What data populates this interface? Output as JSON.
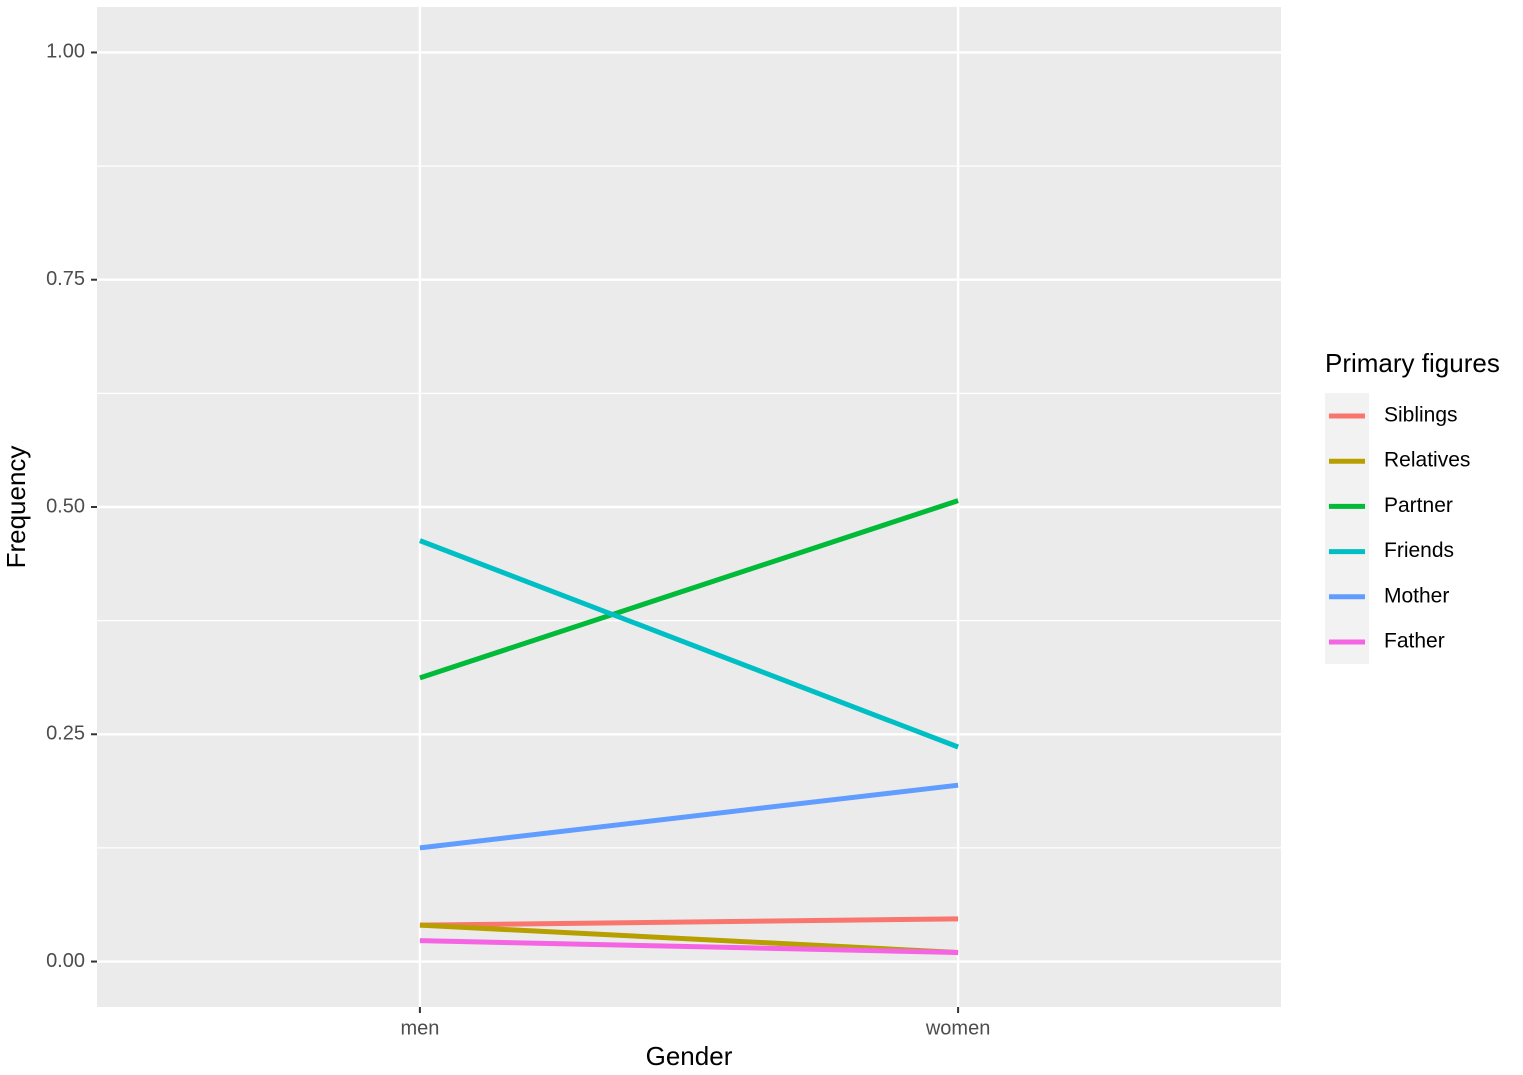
{
  "chart_data": {
    "type": "line",
    "x_label": "Gender",
    "y_label": "Frequency",
    "categories": [
      "men",
      "women"
    ],
    "series": [
      {
        "name": "Siblings",
        "color": "#f8766d",
        "values": [
          0.04,
          0.047
        ]
      },
      {
        "name": "Relatives",
        "color": "#b79f00",
        "values": [
          0.04,
          0.01
        ]
      },
      {
        "name": "Partner",
        "color": "#00ba38",
        "values": [
          0.312,
          0.507
        ]
      },
      {
        "name": "Friends",
        "color": "#00bfc4",
        "values": [
          0.463,
          0.236
        ]
      },
      {
        "name": "Mother",
        "color": "#619cff",
        "values": [
          0.125,
          0.194
        ]
      },
      {
        "name": "Father",
        "color": "#f564e3",
        "values": [
          0.023,
          0.01
        ]
      }
    ],
    "legend_title": "Primary figures",
    "legend": "right",
    "ylim": [
      -0.05,
      1.05
    ],
    "yticks": [
      {
        "value": 0,
        "label": "0.00"
      },
      {
        "value": 0.25,
        "label": "0.25"
      },
      {
        "value": 0.5,
        "label": "0.50"
      },
      {
        "value": 0.75,
        "label": "0.75"
      },
      {
        "value": 1,
        "label": "1.00"
      }
    ],
    "y_minor_grid": [
      0.125,
      0.375,
      0.625,
      0.875
    ],
    "grid": true
  }
}
